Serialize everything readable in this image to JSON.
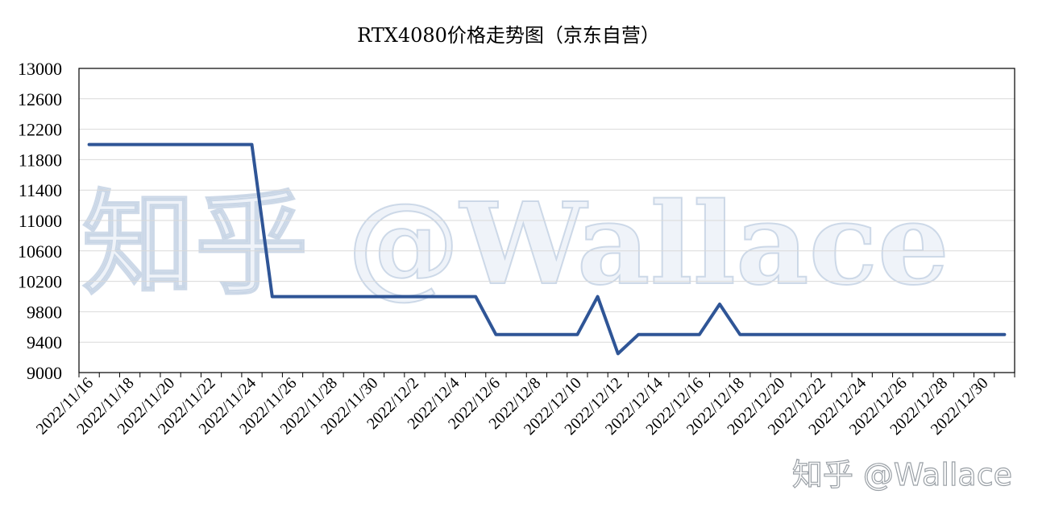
{
  "chart_data": {
    "type": "line",
    "title": "RTX4080价格走势图（京东自营）",
    "xlabel": "",
    "ylabel": "",
    "ylim": [
      9000,
      13000
    ],
    "yticks": [
      9000,
      9400,
      9800,
      10200,
      10600,
      11000,
      11400,
      11800,
      12200,
      12600,
      13000
    ],
    "grid": true,
    "legend": "none",
    "x_tick_labels": [
      "2022/11/16",
      "2022/11/18",
      "2022/11/20",
      "2022/11/22",
      "2022/11/24",
      "2022/11/26",
      "2022/11/28",
      "2022/11/30",
      "2022/12/2",
      "2022/12/4",
      "2022/12/6",
      "2022/12/8",
      "2022/12/10",
      "2022/12/12",
      "2022/12/14",
      "2022/12/16",
      "2022/12/18",
      "2022/12/20",
      "2022/12/22",
      "2022/12/24",
      "2022/12/26",
      "2022/12/28",
      "2022/12/30"
    ],
    "x": [
      "2022/11/16",
      "2022/11/17",
      "2022/11/18",
      "2022/11/19",
      "2022/11/20",
      "2022/11/21",
      "2022/11/22",
      "2022/11/23",
      "2022/11/24",
      "2022/11/25",
      "2022/11/26",
      "2022/11/27",
      "2022/11/28",
      "2022/11/29",
      "2022/11/30",
      "2022/12/1",
      "2022/12/2",
      "2022/12/3",
      "2022/12/4",
      "2022/12/5",
      "2022/12/6",
      "2022/12/7",
      "2022/12/8",
      "2022/12/9",
      "2022/12/10",
      "2022/12/11",
      "2022/12/12",
      "2022/12/13",
      "2022/12/14",
      "2022/12/15",
      "2022/12/16",
      "2022/12/17",
      "2022/12/18",
      "2022/12/19",
      "2022/12/20",
      "2022/12/21",
      "2022/12/22",
      "2022/12/23",
      "2022/12/24",
      "2022/12/25",
      "2022/12/26",
      "2022/12/27",
      "2022/12/28",
      "2022/12/29",
      "2022/12/30",
      "2022/12/31"
    ],
    "series": [
      {
        "color": "#2f5596",
        "values": [
          11999,
          11999,
          11999,
          11999,
          11999,
          11999,
          11999,
          11999,
          11999,
          9999,
          9999,
          9999,
          9999,
          9999,
          9999,
          9999,
          9999,
          9999,
          9999,
          9999,
          9499,
          9499,
          9499,
          9499,
          9499,
          9999,
          9249,
          9499,
          9499,
          9499,
          9499,
          9899,
          9499,
          9499,
          9499,
          9499,
          9499,
          9499,
          9499,
          9499,
          9499,
          9499,
          9499,
          9499,
          9499,
          9499
        ]
      }
    ]
  },
  "watermark": {
    "large": "知乎 @Wallace",
    "small": "知乎 @Wallace"
  },
  "colors": {
    "line": "#2f5596",
    "grid": "#d9d9d9",
    "axis": "#000000"
  }
}
